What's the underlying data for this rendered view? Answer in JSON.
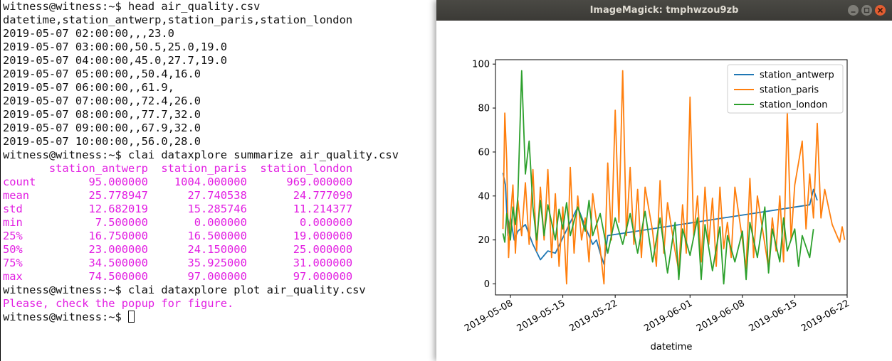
{
  "terminal": {
    "lines": [
      {
        "text": "witness@witness:~$ head air_quality.csv",
        "color": "default"
      },
      {
        "text": "datetime,station_antwerp,station_paris,station_london",
        "color": "default"
      },
      {
        "text": "2019-05-07 02:00:00,,,23.0",
        "color": "default"
      },
      {
        "text": "2019-05-07 03:00:00,50.5,25.0,19.0",
        "color": "default"
      },
      {
        "text": "2019-05-07 04:00:00,45.0,27.7,19.0",
        "color": "default"
      },
      {
        "text": "2019-05-07 05:00:00,,50.4,16.0",
        "color": "default"
      },
      {
        "text": "2019-05-07 06:00:00,,61.9,",
        "color": "default"
      },
      {
        "text": "2019-05-07 07:00:00,,72.4,26.0",
        "color": "default"
      },
      {
        "text": "2019-05-07 08:00:00,,77.7,32.0",
        "color": "default"
      },
      {
        "text": "2019-05-07 09:00:00,,67.9,32.0",
        "color": "default"
      },
      {
        "text": "2019-05-07 10:00:00,,56.0,28.0",
        "color": "default"
      },
      {
        "text": "witness@witness:~$ clai dataxplore summarize air_quality.csv",
        "color": "default"
      },
      {
        "text": "       station_antwerp  station_paris  station_london",
        "color": "magenta"
      },
      {
        "text": "count        95.000000    1004.000000      969.000000",
        "color": "magenta"
      },
      {
        "text": "mean         25.778947      27.740538       24.777090",
        "color": "magenta"
      },
      {
        "text": "std          12.682019      15.285746       11.214377",
        "color": "magenta"
      },
      {
        "text": "min           7.500000       0.000000        0.000000",
        "color": "magenta"
      },
      {
        "text": "25%          16.750000      16.500000       19.000000",
        "color": "magenta"
      },
      {
        "text": "50%          23.000000      24.150000       25.000000",
        "color": "magenta"
      },
      {
        "text": "75%          34.500000      35.925000       31.000000",
        "color": "magenta"
      },
      {
        "text": "max          74.500000      97.000000       97.000000",
        "color": "magenta"
      },
      {
        "text": "witness@witness:~$ clai dataxplore plot air_quality.csv",
        "color": "default"
      },
      {
        "text": "Please, check the popup for figure.",
        "color": "magenta"
      }
    ],
    "prompt": "witness@witness:~$ ",
    "colors": {
      "default": "#111111",
      "magenta": "#e21ee2"
    }
  },
  "window": {
    "title": "ImageMagick: tmphwzou9zb",
    "titlebar_color": "#3e3d39",
    "close_color": "#e25d31"
  },
  "chart_data": {
    "type": "line",
    "xlabel": "datetime",
    "ylabel": "",
    "x_ticks": [
      "2019-05-08",
      "2019-05-15",
      "2019-05-22",
      "2019-06-01",
      "2019-06-08",
      "2019-06-15",
      "2019-06-22"
    ],
    "xlim": [
      "2019-05-06",
      "2019-06-22"
    ],
    "y_ticks": [
      0,
      20,
      40,
      60,
      80,
      100
    ],
    "ylim": [
      -5,
      102
    ],
    "legend_position": "top-right",
    "grid": false,
    "series": [
      {
        "name": "station_antwerp",
        "color": "#1f77b4",
        "points": [
          [
            "2019-05-07",
            50.5
          ],
          [
            "2019-05-07",
            45.0
          ],
          [
            "2019-05-07",
            22.0
          ],
          [
            "2019-05-08",
            30.0
          ],
          [
            "2019-05-08",
            20.0
          ],
          [
            "2019-05-09",
            24.0
          ],
          [
            "2019-05-10",
            27.0
          ],
          [
            "2019-05-11",
            18.0
          ],
          [
            "2019-05-12",
            11.0
          ],
          [
            "2019-05-13",
            15.0
          ],
          [
            "2019-05-14",
            14.0
          ],
          [
            "2019-05-16",
            28.0
          ],
          [
            "2019-05-17",
            35.0
          ],
          [
            "2019-05-18",
            26.0
          ],
          [
            "2019-05-19",
            18.0
          ],
          [
            "2019-05-19",
            20.0
          ],
          [
            "2019-05-20",
            14.0
          ],
          [
            "2019-05-20",
            9.0
          ],
          [
            "2019-05-21",
            22.0
          ],
          [
            "2019-06-17",
            36.0
          ],
          [
            "2019-06-17",
            43.0
          ],
          [
            "2019-06-18",
            38.0
          ]
        ]
      },
      {
        "name": "station_paris",
        "color": "#ff7f0e",
        "points": [
          [
            "2019-05-07",
            25.0
          ],
          [
            "2019-05-07",
            77.7
          ],
          [
            "2019-05-07",
            56.0
          ],
          [
            "2019-05-07",
            12.0
          ],
          [
            "2019-05-08",
            30.0
          ],
          [
            "2019-05-08",
            45.0
          ],
          [
            "2019-05-08",
            14.0
          ],
          [
            "2019-05-09",
            38.0
          ],
          [
            "2019-05-09",
            22.0
          ],
          [
            "2019-05-10",
            46.0
          ],
          [
            "2019-05-10",
            18.0
          ],
          [
            "2019-05-11",
            52.0
          ],
          [
            "2019-05-11",
            15.0
          ],
          [
            "2019-05-12",
            44.0
          ],
          [
            "2019-05-12",
            20.0
          ],
          [
            "2019-05-13",
            52.0
          ],
          [
            "2019-05-13",
            12.0
          ],
          [
            "2019-05-14",
            41.0
          ],
          [
            "2019-05-14",
            8.0
          ],
          [
            "2019-05-15",
            35.0
          ],
          [
            "2019-05-15",
            0.0
          ],
          [
            "2019-05-16",
            53.0
          ],
          [
            "2019-05-16",
            14.0
          ],
          [
            "2019-05-17",
            40.0
          ],
          [
            "2019-05-17",
            20.0
          ],
          [
            "2019-05-18",
            30.0
          ],
          [
            "2019-05-18",
            10.0
          ],
          [
            "2019-05-19",
            41.0
          ],
          [
            "2019-05-20",
            16.0
          ],
          [
            "2019-05-20",
            0.0
          ],
          [
            "2019-05-21",
            55.0
          ],
          [
            "2019-05-21",
            20.0
          ],
          [
            "2019-05-22",
            79.0
          ],
          [
            "2019-05-22",
            28.0
          ],
          [
            "2019-05-23",
            97.0
          ],
          [
            "2019-05-23",
            22.0
          ],
          [
            "2019-05-24",
            53.0
          ],
          [
            "2019-05-24",
            18.0
          ],
          [
            "2019-05-25",
            43.0
          ],
          [
            "2019-05-25",
            12.0
          ],
          [
            "2019-05-26",
            44.0
          ],
          [
            "2019-05-27",
            24.0
          ],
          [
            "2019-05-27",
            8.0
          ],
          [
            "2019-05-28",
            47.0
          ],
          [
            "2019-05-28",
            14.0
          ],
          [
            "2019-05-29",
            37.0
          ],
          [
            "2019-05-30",
            15.0
          ],
          [
            "2019-05-30",
            6.0
          ],
          [
            "2019-05-31",
            36.0
          ],
          [
            "2019-05-31",
            14.0
          ],
          [
            "2019-06-01",
            85.0
          ],
          [
            "2019-06-01",
            22.0
          ],
          [
            "2019-06-02",
            40.0
          ],
          [
            "2019-06-02",
            10.0
          ],
          [
            "2019-06-03",
            44.0
          ],
          [
            "2019-06-03",
            18.0
          ],
          [
            "2019-06-04",
            39.0
          ],
          [
            "2019-06-04",
            8.0
          ],
          [
            "2019-06-05",
            44.0
          ],
          [
            "2019-06-05",
            16.0
          ],
          [
            "2019-06-06",
            28.0
          ],
          [
            "2019-06-06",
            12.0
          ],
          [
            "2019-06-07",
            44.0
          ],
          [
            "2019-06-08",
            20.0
          ],
          [
            "2019-06-08",
            7.0
          ],
          [
            "2019-06-09",
            48.0
          ],
          [
            "2019-06-09",
            12.0
          ],
          [
            "2019-06-10",
            40.0
          ],
          [
            "2019-06-11",
            18.0
          ],
          [
            "2019-06-11",
            7.0
          ],
          [
            "2019-06-12",
            30.0
          ],
          [
            "2019-06-12",
            15.0
          ],
          [
            "2019-06-13",
            40.0
          ],
          [
            "2019-06-13",
            10.0
          ],
          [
            "2019-06-14",
            78.0
          ],
          [
            "2019-06-14",
            20.0
          ],
          [
            "2019-06-15",
            45.0
          ],
          [
            "2019-06-16",
            65.0
          ],
          [
            "2019-06-16",
            25.0
          ],
          [
            "2019-06-17",
            50.0
          ],
          [
            "2019-06-17",
            30.0
          ],
          [
            "2019-06-18",
            73.0
          ],
          [
            "2019-06-18",
            30.0
          ],
          [
            "2019-06-19",
            43.0
          ],
          [
            "2019-06-20",
            27.0
          ],
          [
            "2019-06-21",
            19.0
          ],
          [
            "2019-06-21",
            26.0
          ],
          [
            "2019-06-21",
            20.0
          ]
        ]
      },
      {
        "name": "station_london",
        "color": "#2ca02c",
        "points": [
          [
            "2019-05-07",
            23.0
          ],
          [
            "2019-05-07",
            19.0
          ],
          [
            "2019-05-07",
            32.0
          ],
          [
            "2019-05-07",
            28.0
          ],
          [
            "2019-05-08",
            20.0
          ],
          [
            "2019-05-08",
            35.0
          ],
          [
            "2019-05-08",
            27.0
          ],
          [
            "2019-05-09",
            40.0
          ],
          [
            "2019-05-09",
            97.0
          ],
          [
            "2019-05-10",
            50.0
          ],
          [
            "2019-05-10",
            65.0
          ],
          [
            "2019-05-11",
            35.0
          ],
          [
            "2019-05-11",
            20.0
          ],
          [
            "2019-05-12",
            38.0
          ],
          [
            "2019-05-12",
            22.0
          ],
          [
            "2019-05-13",
            36.0
          ],
          [
            "2019-05-14",
            20.0
          ],
          [
            "2019-05-14",
            34.0
          ],
          [
            "2019-05-15",
            25.0
          ],
          [
            "2019-05-15",
            37.0
          ],
          [
            "2019-05-16",
            22.0
          ],
          [
            "2019-05-17",
            35.0
          ],
          [
            "2019-05-18",
            24.0
          ],
          [
            "2019-05-18",
            38.0
          ],
          [
            "2019-05-19",
            22.0
          ],
          [
            "2019-05-20",
            32.0
          ],
          [
            "2019-05-21",
            14.0
          ],
          [
            "2019-05-22",
            30.0
          ],
          [
            "2019-05-23",
            18.0
          ],
          [
            "2019-05-24",
            32.0
          ],
          [
            "2019-05-25",
            14.0
          ],
          [
            "2019-05-26",
            33.0
          ],
          [
            "2019-05-27",
            10.0
          ],
          [
            "2019-05-28",
            30.0
          ],
          [
            "2019-05-29",
            5.0
          ],
          [
            "2019-05-30",
            28.0
          ],
          [
            "2019-05-30",
            2.0
          ],
          [
            "2019-05-31",
            25.0
          ],
          [
            "2019-06-01",
            13.0
          ],
          [
            "2019-06-02",
            30.0
          ],
          [
            "2019-06-02",
            2.0
          ],
          [
            "2019-06-03",
            27.0
          ],
          [
            "2019-06-04",
            6.0
          ],
          [
            "2019-06-05",
            26.0
          ],
          [
            "2019-06-05",
            0.0
          ],
          [
            "2019-06-06",
            22.0
          ],
          [
            "2019-06-07",
            10.0
          ],
          [
            "2019-06-08",
            24.0
          ],
          [
            "2019-06-08",
            2.0
          ],
          [
            "2019-06-09",
            28.0
          ],
          [
            "2019-06-10",
            12.0
          ],
          [
            "2019-06-11",
            35.0
          ],
          [
            "2019-06-11",
            5.0
          ],
          [
            "2019-06-12",
            25.0
          ],
          [
            "2019-06-13",
            10.0
          ],
          [
            "2019-06-13",
            30.0
          ],
          [
            "2019-06-14",
            15.0
          ],
          [
            "2019-06-15",
            25.0
          ],
          [
            "2019-06-15",
            8.0
          ],
          [
            "2019-06-16",
            22.0
          ],
          [
            "2019-06-17",
            12.0
          ],
          [
            "2019-06-17",
            25.0
          ]
        ]
      }
    ]
  }
}
